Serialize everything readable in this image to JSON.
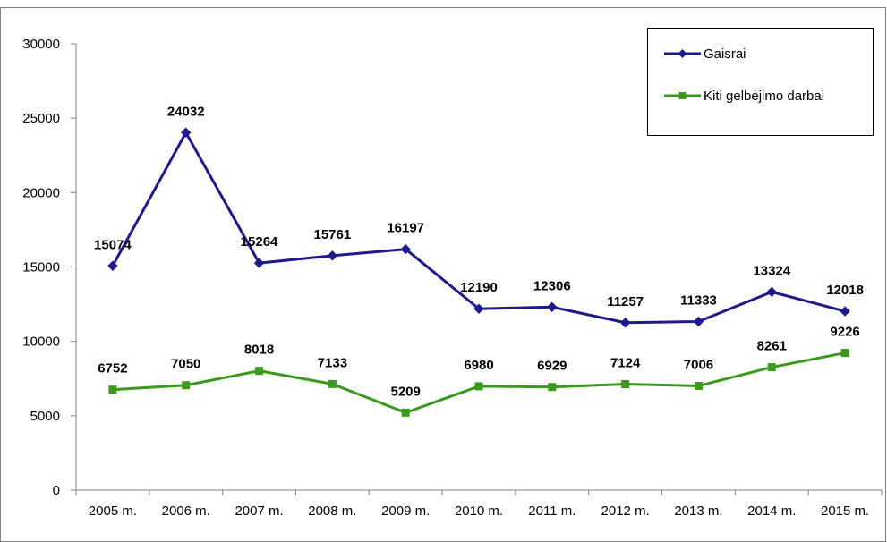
{
  "chart_data": {
    "type": "line",
    "categories": [
      "2005 m.",
      "2006 m.",
      "2007 m.",
      "2008 m.",
      "2009 m.",
      "2010 m.",
      "2011 m.",
      "2012 m.",
      "2013 m.",
      "2014 m.",
      "2015 m."
    ],
    "series": [
      {
        "name": "Gaisrai",
        "color": "#1f1a8c",
        "marker": "diamond",
        "values": [
          15074,
          24032,
          15264,
          15761,
          16197,
          12190,
          12306,
          11257,
          11333,
          13324,
          12018
        ]
      },
      {
        "name": "Kiti gelbėjimo darbai",
        "color": "#3a9a1c",
        "marker": "square",
        "values": [
          6752,
          7050,
          8018,
          7133,
          5209,
          6980,
          6929,
          7124,
          7006,
          8261,
          9226
        ]
      }
    ],
    "ylim": [
      0,
      30000
    ],
    "yticks": [
      0,
      5000,
      10000,
      15000,
      20000,
      25000,
      30000
    ],
    "title": "",
    "xlabel": "",
    "ylabel": "",
    "grid": false,
    "legend_position": "top-right",
    "data_labels": true
  }
}
